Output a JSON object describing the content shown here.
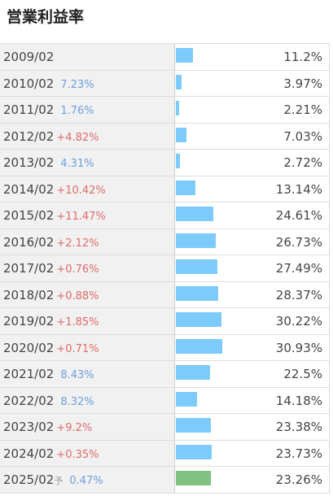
{
  "title": "営業利益率",
  "bar_color": "#7dcbfa",
  "rows": [
    {
      "period": "2009/02",
      "value": 11.2,
      "value_label": "11.2%"
    },
    {
      "period": "2010/02",
      "change": "7.23%",
      "value": 3.97,
      "value_label": "3.97%"
    },
    {
      "period": "2011/02",
      "change": "1.76%",
      "value": 2.21,
      "value_label": "2.21%"
    },
    {
      "period": "2012/02",
      "change": "+4.82%",
      "value": 7.03,
      "value_label": "7.03%"
    },
    {
      "period": "2013/02",
      "change": "4.31%",
      "value": 2.72,
      "value_label": "2.72%"
    },
    {
      "period": "2014/02",
      "change": "+10.42%",
      "value": 13.14,
      "value_label": "13.14%"
    },
    {
      "period": "2015/02",
      "change": "+11.47%",
      "value": 24.61,
      "value_label": "24.61%"
    },
    {
      "period": "2016/02",
      "change": "+2.12%",
      "value": 26.73,
      "value_label": "26.73%"
    },
    {
      "period": "2017/02",
      "change": "+0.76%",
      "value": 27.49,
      "value_label": "27.49%"
    },
    {
      "period": "2018/02",
      "change": "+0.88%",
      "value": 28.37,
      "value_label": "28.37%"
    },
    {
      "period": "2019/02",
      "change": "+1.85%",
      "value": 30.22,
      "value_label": "30.22%"
    },
    {
      "period": "2020/02",
      "change": "+0.71%",
      "value": 30.93,
      "value_label": "30.93%"
    },
    {
      "period": "2021/02",
      "change": "8.43%",
      "value": 22.5,
      "value_label": "22.5%"
    },
    {
      "period": "2022/02",
      "change": "8.32%",
      "value": 14.18,
      "value_label": "14.18%"
    },
    {
      "period": "2023/02",
      "change": "+9.2%",
      "value": 23.38,
      "value_label": "23.38%"
    },
    {
      "period": "2024/02",
      "change": "+0.35%",
      "value": 23.73,
      "value_label": "23.73%"
    },
    {
      "period": "2025/02",
      "marker": "予",
      "change": "0.47%",
      "value": 23.26,
      "value_label": "23.26%",
      "bar_color": "#80c281"
    }
  ]
}
